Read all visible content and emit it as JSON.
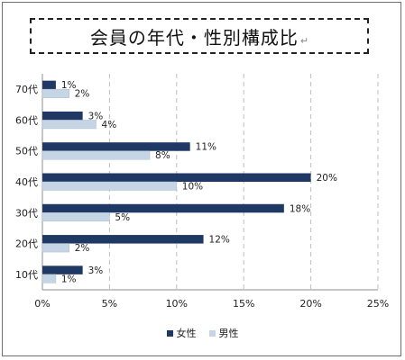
{
  "chart_data": {
    "type": "bar",
    "orientation": "horizontal",
    "title": "会員の年代・性別構成比",
    "title_mark": "↵",
    "categories": [
      "70代",
      "60代",
      "50代",
      "40代",
      "30代",
      "20代",
      "10代"
    ],
    "series": [
      {
        "name": "女性",
        "color": "#1f3864",
        "values": [
          1,
          3,
          11,
          20,
          18,
          12,
          3
        ],
        "labels": [
          "1%",
          "3%",
          "11%",
          "20%",
          "18%",
          "12%",
          "3%"
        ]
      },
      {
        "name": "男性",
        "color": "#c5d5e6",
        "values": [
          2,
          4,
          8,
          10,
          5,
          2,
          1
        ],
        "labels": [
          "2%",
          "4%",
          "8%",
          "10%",
          "5%",
          "2%",
          "1%"
        ]
      }
    ],
    "xlim": [
      0,
      25
    ],
    "xticks": [
      0,
      5,
      10,
      15,
      20,
      25
    ],
    "xtick_labels": [
      "0%",
      "5%",
      "10%",
      "15%",
      "20%",
      "25%"
    ],
    "grid": "vertical-dashed",
    "legend_position": "bottom"
  }
}
